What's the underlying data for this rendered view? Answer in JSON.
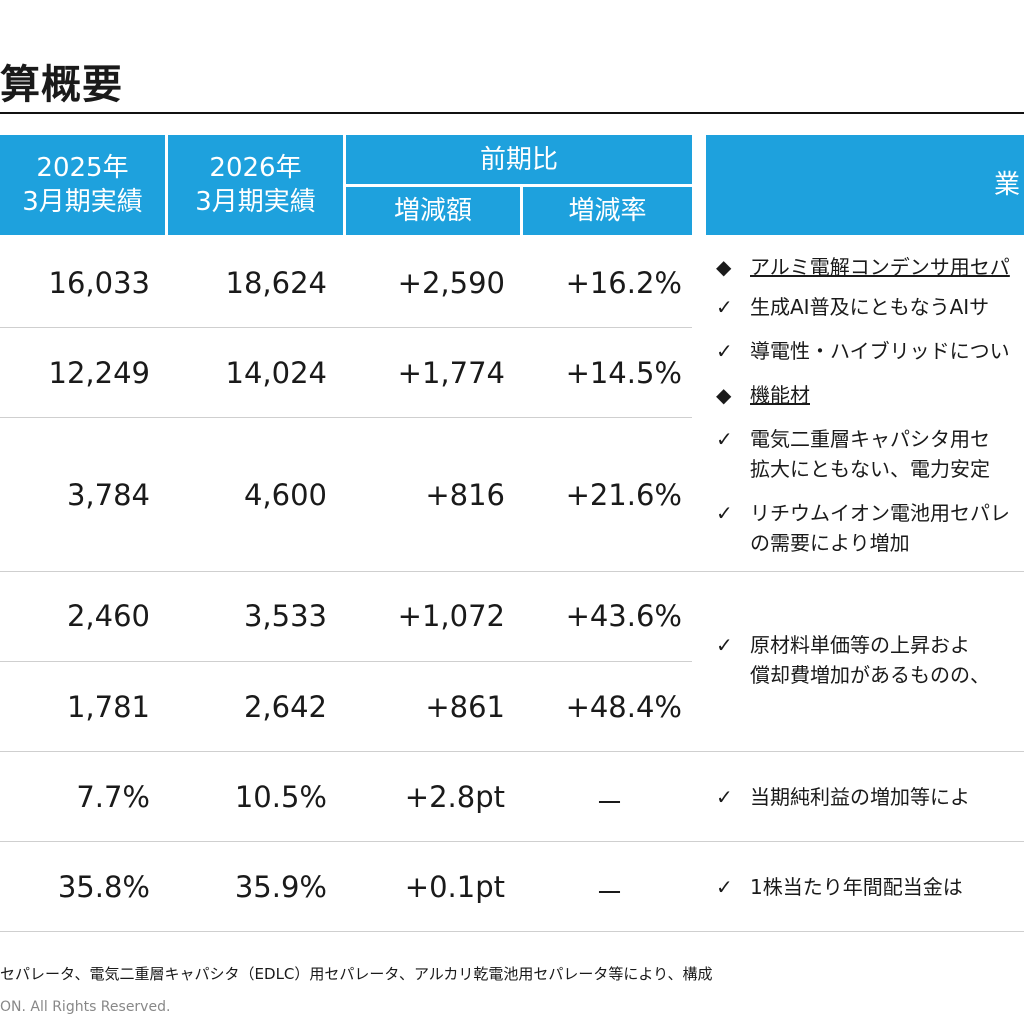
{
  "slide": {
    "title": "算概要"
  },
  "table": {
    "headers": {
      "col1_line1": "2025年",
      "col1_line2": "3月期実績",
      "col2_line1": "2026年",
      "col2_line2": "3月期実績",
      "group": "前期比",
      "col3": "増減額",
      "col4": "増減率"
    },
    "rows": [
      {
        "fy2025": "16,033",
        "fy2026": "18,624",
        "change": "+2,590",
        "rate": "+16.2%"
      },
      {
        "fy2025": "12,249",
        "fy2026": "14,024",
        "change": "+1,774",
        "rate": "+14.5%"
      },
      {
        "fy2025": "3,784",
        "fy2026": "4,600",
        "change": "+816",
        "rate": "+21.6%"
      },
      {
        "fy2025": "2,460",
        "fy2026": "3,533",
        "change": "+1,072",
        "rate": "+43.6%"
      },
      {
        "fy2025": "1,781",
        "fy2026": "2,642",
        "change": "+861",
        "rate": "+48.4%"
      },
      {
        "fy2025": "7.7%",
        "fy2026": "10.5%",
        "change": "+2.8pt",
        "rate": "－"
      },
      {
        "fy2025": "35.8%",
        "fy2026": "35.9%",
        "change": "+0.1pt",
        "rate": "－"
      }
    ]
  },
  "commentary": {
    "header": "業",
    "items": [
      {
        "mark": "◆",
        "text": "アルミ電解コンデンサ用セパ"
      },
      {
        "mark": "✓",
        "text": "生成AI普及にともなうAIサ"
      },
      {
        "mark": "✓",
        "text": "導電性・ハイブリッドについ"
      },
      {
        "mark": "◆",
        "text": "機能材"
      },
      {
        "mark": "✓",
        "text": "電気二重層キャパシタ用セ"
      },
      {
        "mark": "",
        "text": "拡大にともない、電力安定"
      },
      {
        "mark": "✓",
        "text": "リチウムイオン電池用セパレ"
      },
      {
        "mark": "",
        "text": "の需要により増加"
      },
      {
        "mark": "✓",
        "text": "原材料単価等の上昇およ"
      },
      {
        "mark": "",
        "text": "償却費増加があるものの、"
      },
      {
        "mark": "✓",
        "text": "当期純利益の増加等によ"
      },
      {
        "mark": "✓",
        "text": "1株当たり年間配当金は"
      }
    ]
  },
  "footer": {
    "note": "セパレータ、電気二重層キャパシタ（EDLC）用セパレータ、アルカリ乾電池用セパレータ等により、構成",
    "copyright": "ON. All Rights Reserved."
  }
}
